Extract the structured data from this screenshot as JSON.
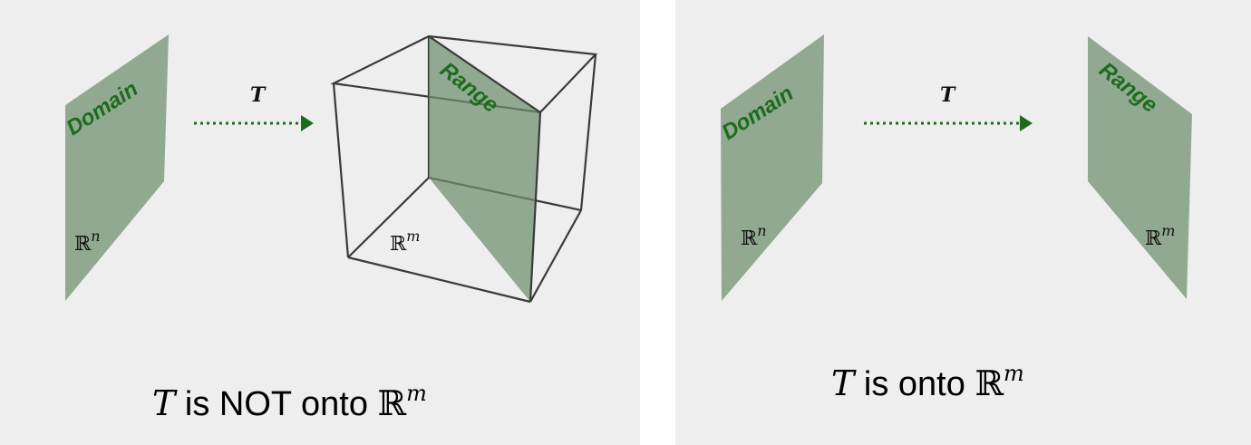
{
  "left_panel": {
    "domain_label": "Domain",
    "domain_space": {
      "symbol": "ℝ",
      "exponent": "n"
    },
    "map_label": "T",
    "range_label": "Range",
    "codomain_space": {
      "symbol": "ℝ",
      "exponent": "m"
    },
    "caption": {
      "var": "T",
      "text": " is NOT onto ",
      "symbol": "ℝ",
      "exponent": "m"
    }
  },
  "right_panel": {
    "domain_label": "Domain",
    "domain_space": {
      "symbol": "ℝ",
      "exponent": "n"
    },
    "map_label": "T",
    "range_label": "Range",
    "codomain_space": {
      "symbol": "ℝ",
      "exponent": "m"
    },
    "caption": {
      "var": "T",
      "text": " is onto ",
      "symbol": "ℝ",
      "exponent": "m"
    }
  },
  "colors": {
    "plane_fill": "#6e8f6e",
    "arrow": "#1e6b1e",
    "plane_text": "#1e6b1e",
    "background": "#eeeeee"
  }
}
